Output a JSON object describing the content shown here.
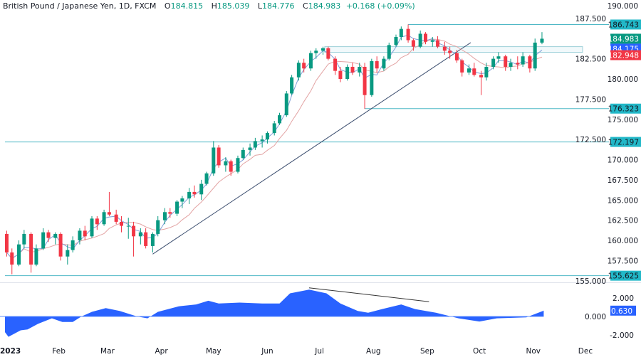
{
  "header": {
    "symbol": "British Pound / Japanese Yen, 1D, FXCM",
    "open_label": "O",
    "open": "184.815",
    "high_label": "H",
    "high": "185.039",
    "low_label": "L",
    "low": "184.776",
    "close_label": "C",
    "close": "184.983",
    "change": "+0.168 (+0.09%)"
  },
  "colors": {
    "up": "#089981",
    "down": "#f23645",
    "fast_ma": "#7f9fd8",
    "slow_ma": "#e3a4a4",
    "level_line": "#4fb8c6",
    "trendline": "#3d4f70",
    "oscillator": "#2962ff",
    "last_price_tag": "#089981",
    "blue_tag": "#2962ff",
    "red_tag": "#f23645",
    "level_tag": "#22b8c8"
  },
  "chart_data": [
    {
      "type": "candlestick",
      "title": "British Pound / Japanese Yen, 1D, FXCM",
      "ylim": [
        155,
        190
      ],
      "price_ticks": [
        "190.000",
        "187.500",
        "182.500",
        "180.000",
        "177.500",
        "175.000",
        "172.500",
        "170.000",
        "167.500",
        "165.000",
        "162.500",
        "160.000",
        "157.500",
        "155.000"
      ],
      "x_ticks": [
        {
          "label": "2023",
          "date": "2023-01-01"
        },
        {
          "label": "Feb",
          "date": "2023-02-01"
        },
        {
          "label": "Mar",
          "date": "2023-03-01"
        },
        {
          "label": "Apr",
          "date": "2023-04-01"
        },
        {
          "label": "May",
          "date": "2023-05-01"
        },
        {
          "label": "Jun",
          "date": "2023-06-01"
        },
        {
          "label": "Jul",
          "date": "2023-07-01"
        },
        {
          "label": "Aug",
          "date": "2023-08-01"
        },
        {
          "label": "Sep",
          "date": "2023-09-01"
        },
        {
          "label": "Oct",
          "date": "2023-10-01"
        },
        {
          "label": "Nov",
          "date": "2023-11-01"
        },
        {
          "label": "Dec",
          "date": "2023-12-01"
        }
      ],
      "columns": [
        "date",
        "open",
        "high",
        "low",
        "close"
      ],
      "candles": [
        [
          "2023-01-02",
          160.8,
          161.2,
          158,
          158.5
        ],
        [
          "2023-01-05",
          158.5,
          159,
          155.8,
          157
        ],
        [
          "2023-01-09",
          157,
          160,
          156.8,
          159.5
        ],
        [
          "2023-01-12",
          159.5,
          161.3,
          159,
          160.8
        ],
        [
          "2023-01-16",
          160.8,
          161,
          156,
          157
        ],
        [
          "2023-01-19",
          157,
          159.5,
          156.8,
          159
        ],
        [
          "2023-01-23",
          159,
          161.5,
          158.8,
          161
        ],
        [
          "2023-01-26",
          161,
          161.3,
          159.8,
          160.3
        ],
        [
          "2023-01-30",
          160.3,
          161,
          159.5,
          160.8
        ],
        [
          "2023-02-02",
          160.8,
          161,
          157.5,
          158
        ],
        [
          "2023-02-06",
          158,
          159.5,
          157,
          158.8
        ],
        [
          "2023-02-09",
          158.8,
          160.5,
          158.5,
          160
        ],
        [
          "2023-02-13",
          160,
          161.5,
          159.5,
          161.2
        ],
        [
          "2023-02-16",
          161.2,
          161.8,
          160,
          160.5
        ],
        [
          "2023-02-20",
          160.5,
          163,
          160.3,
          162.7
        ],
        [
          "2023-02-23",
          162.7,
          163,
          161.3,
          162
        ],
        [
          "2023-02-27",
          162,
          163.8,
          161.8,
          163.5
        ],
        [
          "2023-03-02",
          163.5,
          166,
          163,
          163.2
        ],
        [
          "2023-03-06",
          163.2,
          163.8,
          162,
          162.3
        ],
        [
          "2023-03-09",
          162.3,
          163,
          161,
          161.8
        ],
        [
          "2023-03-13",
          161.8,
          162.8,
          160.2,
          161.8
        ],
        [
          "2023-03-16",
          161.8,
          162.3,
          158,
          160.5
        ],
        [
          "2023-03-20",
          160.5,
          161.5,
          159.5,
          161
        ],
        [
          "2023-03-23",
          161,
          161.5,
          159,
          159.3
        ],
        [
          "2023-03-27",
          159.3,
          161,
          158.5,
          160.8
        ],
        [
          "2023-03-30",
          160.8,
          163,
          160.5,
          162.5
        ],
        [
          "2023-04-03",
          162.5,
          164,
          162,
          163.5
        ],
        [
          "2023-04-06",
          163.5,
          164,
          162.8,
          163.3
        ],
        [
          "2023-04-10",
          163.3,
          165,
          163,
          164.8
        ],
        [
          "2023-04-13",
          164.8,
          165.5,
          164,
          165.2
        ],
        [
          "2023-04-17",
          165.2,
          166.5,
          164.5,
          166
        ],
        [
          "2023-04-20",
          166,
          166.8,
          165.3,
          165.7
        ],
        [
          "2023-04-24",
          165.7,
          167.5,
          165,
          167
        ],
        [
          "2023-04-27",
          167,
          168.5,
          166.8,
          168.3
        ],
        [
          "2023-05-01",
          168.3,
          172.3,
          168,
          171.5
        ],
        [
          "2023-05-04",
          171.5,
          171.8,
          169,
          169.3
        ],
        [
          "2023-05-08",
          169.3,
          170.3,
          168.5,
          169.8
        ],
        [
          "2023-05-11",
          169.8,
          170,
          168,
          168.5
        ],
        [
          "2023-05-15",
          168.5,
          170.5,
          168.3,
          170.2
        ],
        [
          "2023-05-18",
          170.2,
          171.5,
          170,
          171.2
        ],
        [
          "2023-05-22",
          171.2,
          172,
          170.5,
          171.5
        ],
        [
          "2023-05-25",
          171.5,
          172.7,
          171.2,
          172.3
        ],
        [
          "2023-05-29",
          172.3,
          173,
          171.5,
          172.5
        ],
        [
          "2023-06-01",
          172.5,
          173.5,
          172,
          173.3
        ],
        [
          "2023-06-05",
          173.3,
          174.8,
          173,
          174.5
        ],
        [
          "2023-06-08",
          174.5,
          175.8,
          174.3,
          175.5
        ],
        [
          "2023-06-12",
          175.5,
          178.5,
          175.3,
          178.2
        ],
        [
          "2023-06-15",
          178.2,
          180.5,
          178,
          180.2
        ],
        [
          "2023-06-19",
          180.2,
          182.3,
          179.8,
          182
        ],
        [
          "2023-06-22",
          182,
          182.5,
          180.8,
          181.3
        ],
        [
          "2023-06-26",
          181.3,
          183.5,
          181,
          183.2
        ],
        [
          "2023-06-29",
          183.2,
          183.8,
          182.5,
          183.5
        ],
        [
          "2023-07-03",
          183.5,
          184,
          183,
          183.8
        ],
        [
          "2023-07-06",
          183.8,
          184,
          182.3,
          182.5
        ],
        [
          "2023-07-10",
          182.5,
          182.8,
          180.5,
          181
        ],
        [
          "2023-07-13",
          181,
          181.5,
          179.6,
          180
        ],
        [
          "2023-07-17",
          180,
          181.8,
          179.8,
          181.5
        ],
        [
          "2023-07-20",
          181.5,
          182,
          180.5,
          180.8
        ],
        [
          "2023-07-24",
          180.8,
          182,
          180.3,
          181.5
        ],
        [
          "2023-07-27",
          181.5,
          182,
          176.3,
          178
        ],
        [
          "2023-07-31",
          178,
          182.5,
          177.8,
          182.2
        ],
        [
          "2023-08-03",
          182.2,
          182.8,
          180.8,
          181.3
        ],
        [
          "2023-08-07",
          181.3,
          182.8,
          181,
          182.5
        ],
        [
          "2023-08-10",
          182.5,
          184.5,
          182.3,
          184.2
        ],
        [
          "2023-08-14",
          184.2,
          185.5,
          184,
          185.2
        ],
        [
          "2023-08-17",
          185.2,
          186.5,
          184.8,
          186.2
        ],
        [
          "2023-08-21",
          186.2,
          186.75,
          184.5,
          184.8
        ],
        [
          "2023-08-24",
          184.8,
          185,
          183.5,
          184
        ],
        [
          "2023-08-28",
          184,
          186,
          183.8,
          185.6
        ],
        [
          "2023-08-31",
          185.6,
          185.8,
          184.3,
          184.6
        ],
        [
          "2023-09-04",
          184.6,
          185.2,
          184,
          184.8
        ],
        [
          "2023-09-07",
          184.8,
          185.3,
          183.8,
          184
        ],
        [
          "2023-09-11",
          184,
          184.6,
          183,
          183.5
        ],
        [
          "2023-09-14",
          183.5,
          184,
          182.5,
          183.2
        ],
        [
          "2023-09-18",
          183.2,
          183.6,
          182,
          182.3
        ],
        [
          "2023-09-21",
          182.3,
          182.5,
          180.3,
          180.8
        ],
        [
          "2023-09-25",
          180.8,
          181.8,
          180.5,
          181.3
        ],
        [
          "2023-09-28",
          181.3,
          182,
          180.3,
          180.5
        ],
        [
          "2023-10-02",
          180.5,
          181,
          178,
          180.2
        ],
        [
          "2023-10-05",
          180.2,
          182,
          179.8,
          181.5
        ],
        [
          "2023-10-09",
          181.5,
          182.8,
          181.2,
          182.5
        ],
        [
          "2023-10-12",
          182.5,
          183.3,
          182,
          182.8
        ],
        [
          "2023-10-16",
          182.8,
          183,
          181,
          181.5
        ],
        [
          "2023-10-19",
          181.5,
          182.5,
          181,
          182
        ],
        [
          "2023-10-23",
          182,
          182.8,
          181.2,
          181.8
        ],
        [
          "2023-10-26",
          181.8,
          183.3,
          181.5,
          182.8
        ],
        [
          "2023-10-30",
          182.8,
          183,
          180.8,
          181.3
        ],
        [
          "2023-11-02",
          181.3,
          185,
          181,
          184.5
        ],
        [
          "2023-11-06",
          184.5,
          185.8,
          184.3,
          184.983
        ]
      ],
      "horizontal_levels": [
        {
          "price": 186.743,
          "label": "186.743",
          "from": "2023-08-21"
        },
        {
          "price": 176.323,
          "label": "176.323",
          "from": "2023-07-27"
        },
        {
          "price": 172.197,
          "label": "172.197",
          "from": "2023-01-01"
        },
        {
          "price": 155.625,
          "label": "155.625",
          "from": "2023-01-01"
        }
      ],
      "zone": {
        "from": "2023-07-04",
        "top": 184.0,
        "bottom": 183.3
      },
      "trendline": [
        [
          "2023-03-27",
          158.3
        ],
        [
          "2023-09-26",
          184.5
        ]
      ],
      "price_tags": [
        {
          "label": "184.983",
          "price": 184.983,
          "color": "last_price_tag"
        },
        {
          "label": "184.175",
          "price": 183.75,
          "color": "blue_tag"
        },
        {
          "label": "182.948",
          "price": 182.948,
          "color": "red_tag"
        }
      ]
    },
    {
      "type": "area",
      "ylim": [
        -3,
        3.5
      ],
      "y_ticks": [
        "2.000",
        "0.000",
        "-2.000"
      ],
      "last_value_label": "0.630",
      "points": [
        [
          "2023-01-01",
          -1.7
        ],
        [
          "2023-01-03",
          -2.2
        ],
        [
          "2023-01-10",
          -1.5
        ],
        [
          "2023-01-14",
          -1.4
        ],
        [
          "2023-01-20",
          -0.8
        ],
        [
          "2023-01-28",
          -0.2
        ],
        [
          "2023-02-03",
          -0.6
        ],
        [
          "2023-02-09",
          -0.6
        ],
        [
          "2023-02-14",
          0
        ],
        [
          "2023-02-20",
          0.5
        ],
        [
          "2023-02-28",
          0.9
        ],
        [
          "2023-03-08",
          0.6
        ],
        [
          "2023-03-18",
          0
        ],
        [
          "2023-03-24",
          -0.2
        ],
        [
          "2023-03-30",
          0.5
        ],
        [
          "2023-04-11",
          1.1
        ],
        [
          "2023-04-21",
          1.3
        ],
        [
          "2023-04-28",
          1.7
        ],
        [
          "2023-05-04",
          1.4
        ],
        [
          "2023-05-16",
          1.5
        ],
        [
          "2023-05-29",
          1.4
        ],
        [
          "2023-06-08",
          1.4
        ],
        [
          "2023-06-14",
          2.5
        ],
        [
          "2023-06-25",
          2.9
        ],
        [
          "2023-07-05",
          2.5
        ],
        [
          "2023-07-13",
          1.4
        ],
        [
          "2023-07-23",
          0.6
        ],
        [
          "2023-07-29",
          0.4
        ],
        [
          "2023-08-06",
          0.8
        ],
        [
          "2023-08-17",
          1.3
        ],
        [
          "2023-08-25",
          0.8
        ],
        [
          "2023-09-06",
          0.4
        ],
        [
          "2023-09-19",
          -0.2
        ],
        [
          "2023-10-01",
          -0.55
        ],
        [
          "2023-10-11",
          -0.2
        ],
        [
          "2023-10-28",
          -0.1
        ],
        [
          "2023-11-07",
          0.63
        ]
      ],
      "divergence_line": [
        [
          "2023-06-25",
          3.1
        ],
        [
          "2023-09-02",
          1.6
        ]
      ]
    }
  ]
}
